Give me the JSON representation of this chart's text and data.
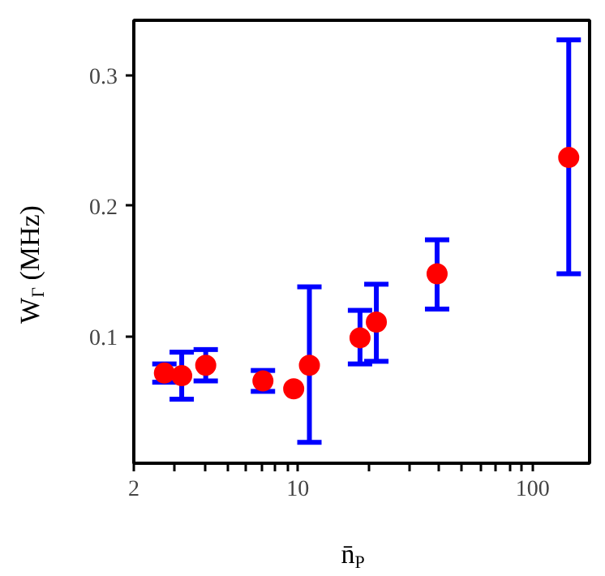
{
  "chart_data": {
    "type": "scatter",
    "xlabel": "n̄$_{P}$",
    "ylabel": "W$_{Γ}$ (MHz)",
    "log": "x",
    "grid": false,
    "marker": "circle",
    "x": [
      2.7,
      3.2,
      4.05,
      7.1,
      9.6,
      11.2,
      18.4,
      21.6,
      39.2,
      142.6
    ],
    "series": [
      {
        "color": "#ff0000",
        "values": [
          0.072,
          0.07,
          0.078,
          0.066,
          0.06,
          0.078,
          0.099,
          0.111,
          0.148,
          0.237
        ],
        "errors": [
          [
            0.065,
            0.079
          ],
          [
            0.052,
            0.088
          ],
          [
            0.066,
            0.09
          ],
          [
            0.058,
            0.074
          ],
          null,
          [
            0.019,
            0.138
          ],
          [
            0.079,
            0.12
          ],
          [
            0.081,
            0.14
          ],
          [
            0.121,
            0.174
          ],
          [
            0.148,
            0.327
          ]
        ]
      }
    ],
    "xlim": [
      2,
      175
    ],
    "ylim": [
      0.003,
      0.342
    ],
    "xticks": [
      2,
      {
        "value": 3,
        "label": null
      },
      {
        "value": 4,
        "label": null
      },
      {
        "value": 5,
        "label": null
      },
      {
        "value": 6,
        "label": null
      },
      {
        "value": 7,
        "label": null
      },
      {
        "value": 8,
        "label": null
      },
      {
        "value": 9,
        "label": null
      },
      10,
      {
        "value": 20,
        "label": null
      },
      {
        "value": 30,
        "label": null
      },
      {
        "value": 40,
        "label": null
      },
      {
        "value": 50,
        "label": null
      },
      {
        "value": 60,
        "label": null
      },
      {
        "value": 70,
        "label": null
      },
      {
        "value": 80,
        "label": null
      },
      {
        "value": 90,
        "label": null
      },
      100
    ],
    "yticks": [
      0.1,
      0.2,
      0.3
    ]
  }
}
